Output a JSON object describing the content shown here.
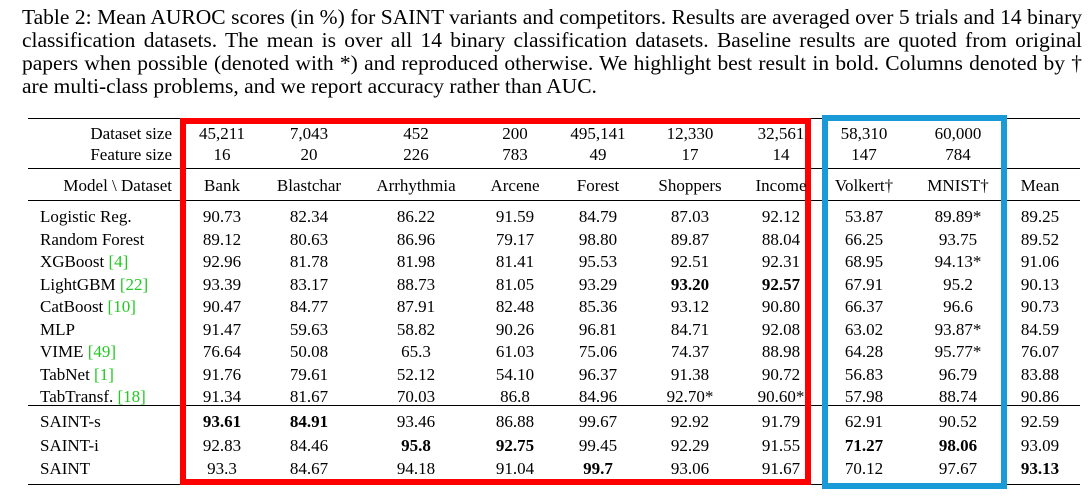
{
  "caption": "Table 2: Mean AUROC scores (in %) for SAINT variants and competitors. Results are averaged over 5 trials and 14 binary classification datasets. The mean is over all 14 binary classification datasets. Baseline results are quoted from original papers when possible (denoted with *) and reproduced otherwise. We highlight best result in bold. Columns denoted by † are multi-class problems, and we report accuracy rather than AUC.",
  "table": {
    "header_label_dataset_size": "Dataset size",
    "header_label_feature_size": "Feature size",
    "header_label_model": "Model \\ Dataset",
    "columns": [
      {
        "name": "Bank",
        "dataset_size": "45,211",
        "feature_size": "16"
      },
      {
        "name": "Blastchar",
        "dataset_size": "7,043",
        "feature_size": "20"
      },
      {
        "name": "Arrhythmia",
        "dataset_size": "452",
        "feature_size": "226"
      },
      {
        "name": "Arcene",
        "dataset_size": "200",
        "feature_size": "783"
      },
      {
        "name": "Forest",
        "dataset_size": "495,141",
        "feature_size": "49"
      },
      {
        "name": "Shoppers",
        "dataset_size": "12,330",
        "feature_size": "17"
      },
      {
        "name": "Income",
        "dataset_size": "32,561",
        "feature_size": "14"
      },
      {
        "name": "Volkert†",
        "dataset_size": "58,310",
        "feature_size": "147"
      },
      {
        "name": "MNIST†",
        "dataset_size": "60,000",
        "feature_size": "784"
      },
      {
        "name": "Mean",
        "dataset_size": "",
        "feature_size": ""
      }
    ],
    "baseline_rows": [
      {
        "model": "Logistic Reg.",
        "cite": "",
        "values": [
          "90.73",
          "82.34",
          "86.22",
          "91.59",
          "84.79",
          "87.03",
          "92.12",
          "53.87",
          "89.89*",
          "89.25"
        ],
        "bold": []
      },
      {
        "model": "Random Forest",
        "cite": "",
        "values": [
          "89.12",
          "80.63",
          "86.96",
          "79.17",
          "98.80",
          "89.87",
          "88.04",
          "66.25",
          "93.75",
          "89.52"
        ],
        "bold": []
      },
      {
        "model": "XGBoost ",
        "cite": "[4]",
        "values": [
          "92.96",
          "81.78",
          "81.98",
          "81.41",
          "95.53",
          "92.51",
          "92.31",
          "68.95",
          "94.13*",
          "91.06"
        ],
        "bold": []
      },
      {
        "model": "LightGBM ",
        "cite": "[22]",
        "values": [
          "93.39",
          "83.17",
          "88.73",
          "81.05",
          "93.29",
          "93.20",
          "92.57",
          "67.91",
          "95.2",
          "90.13"
        ],
        "bold": [
          5,
          6
        ]
      },
      {
        "model": "CatBoost ",
        "cite": "[10]",
        "values": [
          "90.47",
          "84.77",
          "87.91",
          "82.48",
          "85.36",
          "93.12",
          "90.80",
          "66.37",
          "96.6",
          "90.73"
        ],
        "bold": []
      },
      {
        "model": "MLP",
        "cite": "",
        "values": [
          "91.47",
          "59.63",
          "58.82",
          "90.26",
          "96.81",
          "84.71",
          "92.08",
          "63.02",
          "93.87*",
          "84.59"
        ],
        "bold": []
      },
      {
        "model": "VIME ",
        "cite": "[49]",
        "values": [
          "76.64",
          "50.08",
          "65.3",
          "61.03",
          "75.06",
          "74.37",
          "88.98",
          "64.28",
          "95.77*",
          "76.07"
        ],
        "bold": []
      },
      {
        "model": "TabNet ",
        "cite": "[1]",
        "values": [
          "91.76",
          "79.61",
          "52.12",
          "54.10",
          "96.37",
          "91.38",
          "90.72",
          "56.83",
          "96.79",
          "83.88"
        ],
        "bold": []
      },
      {
        "model": "TabTransf. ",
        "cite": "[18]",
        "values": [
          "91.34",
          "81.67",
          "70.03",
          "86.8",
          "84.96",
          "92.70*",
          "90.60*",
          "57.98",
          "88.74",
          "90.86"
        ],
        "bold": []
      }
    ],
    "saint_rows": [
      {
        "model": "SAINT-s",
        "cite": "",
        "values": [
          "93.61",
          "84.91",
          "93.46",
          "86.88",
          "99.67",
          "92.92",
          "91.79",
          "62.91",
          "90.52",
          "92.59"
        ],
        "bold": [
          0,
          1
        ]
      },
      {
        "model": "SAINT-i",
        "cite": "",
        "values": [
          "92.83",
          "84.46",
          "95.8",
          "92.75",
          "99.45",
          "92.29",
          "91.55",
          "71.27",
          "98.06",
          "93.09"
        ],
        "bold": [
          2,
          3,
          7,
          8
        ]
      },
      {
        "model": "SAINT",
        "cite": "",
        "values": [
          "93.3",
          "84.67",
          "94.18",
          "91.04",
          "99.7",
          "93.06",
          "91.67",
          "70.12",
          "97.67",
          "93.13"
        ],
        "bold": [
          4,
          9
        ]
      }
    ]
  },
  "colors": {
    "binary_box": "#ff0000",
    "multiclass_box": "#1a9ad6",
    "citation": "#22c922"
  }
}
